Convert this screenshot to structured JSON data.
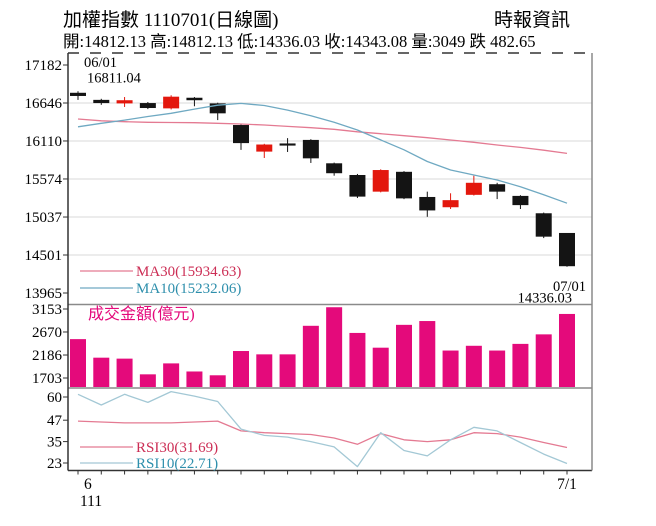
{
  "header": {
    "title": "加權指數 1110701(日線圖)",
    "source": "時報資訊",
    "info": {
      "text": "開:14812.13 高:14812.13 低:14336.03 收:14343.08 量:3049 跌 482.65",
      "open_label": "開",
      "open": "14812.13",
      "high_label": "高",
      "high": "14812.13",
      "low_label": "低",
      "low": "14336.03",
      "close_label": "收",
      "close": "14343.08",
      "volume_label": "量",
      "volume": "3049",
      "change_label": "跌",
      "change": "482.65"
    }
  },
  "colors": {
    "up_candle": "#e3170d",
    "down_candle": "#141414",
    "volume_bar": "#e40a7b",
    "ma30_line": "#e47a92",
    "ma10_line": "#6fa9c2",
    "rsi30_line": "#e47a92",
    "rsi10_line": "#a3c8d5",
    "pink_text": "#cc2e55",
    "blue_text": "#2e8fac",
    "magenta_text": "#e40a7b",
    "grid": "#d9d9d9",
    "border": "#8a8a8a",
    "axis": "#333333",
    "label_text": "#000000"
  },
  "chart_data": {
    "type": "candlestick+bar+line",
    "description": "Daily candlestick chart of Taiwan weighted index (TAIEX) for June 2022 (ROC year 111), with MA10/MA30 overlays, volume bars and RSI10/RSI30 panel",
    "price": {
      "yticks": [
        17182,
        16646,
        16110,
        15574,
        15037,
        14501,
        13965
      ],
      "ylim": [
        13965,
        17182
      ],
      "candles_ohlc": [
        [
          16790,
          16811,
          16690,
          16745
        ],
        [
          16690,
          16705,
          16620,
          16645
        ],
        [
          16640,
          16730,
          16590,
          16685
        ],
        [
          16645,
          16660,
          16560,
          16575
        ],
        [
          16570,
          16755,
          16555,
          16735
        ],
        [
          16720,
          16730,
          16600,
          16685
        ],
        [
          16640,
          16650,
          16405,
          16500
        ],
        [
          16335,
          16350,
          15985,
          16080
        ],
        [
          15960,
          16070,
          15870,
          16060
        ],
        [
          16075,
          16150,
          15955,
          16045
        ],
        [
          16125,
          16135,
          15800,
          15865
        ],
        [
          15795,
          15805,
          15620,
          15655
        ],
        [
          15630,
          15645,
          15305,
          15325
        ],
        [
          15395,
          15710,
          15385,
          15700
        ],
        [
          15675,
          15685,
          15290,
          15300
        ],
        [
          15320,
          15395,
          15040,
          15130
        ],
        [
          15175,
          15372,
          15150,
          15275
        ],
        [
          15350,
          15620,
          15340,
          15520
        ],
        [
          15500,
          15520,
          15290,
          15395
        ],
        [
          15335,
          15345,
          15150,
          15205
        ],
        [
          15090,
          15100,
          14740,
          14760
        ],
        [
          14812.13,
          14812.13,
          14336.03,
          14343.08
        ]
      ],
      "ma30": {
        "label": "MA30(15934.63)",
        "value": 15934.63,
        "values": [
          16420,
          16395,
          16382,
          16373,
          16370,
          16368,
          16360,
          16350,
          16335,
          16316,
          16297,
          16275,
          16240,
          16212,
          16184,
          16156,
          16124,
          16091,
          16053,
          16020,
          15980,
          15934.63
        ]
      },
      "ma10": {
        "label": "MA10(15232.06)",
        "value": 15232.06,
        "values": [
          16310,
          16360,
          16405,
          16455,
          16500,
          16560,
          16615,
          16640,
          16610,
          16545,
          16465,
          16375,
          16265,
          16125,
          15985,
          15820,
          15700,
          15630,
          15560,
          15465,
          15350,
          15232.06
        ]
      },
      "annotations": {
        "start_date": "06/01",
        "start_value": "16811.04",
        "end_date": "07/01",
        "end_value": "14336.03"
      }
    },
    "volume": {
      "title": "成交金額(億元)",
      "yticks": [
        3153,
        2670,
        2186,
        1703
      ],
      "values": [
        2520,
        2130,
        2110,
        1780,
        2010,
        1840,
        1760,
        2270,
        2200,
        2200,
        2800,
        3190,
        2650,
        2340,
        2820,
        2900,
        2280,
        2380,
        2280,
        2420,
        2620,
        3049
      ]
    },
    "rsi": {
      "yticks": [
        60,
        47,
        35,
        23
      ],
      "rsi30": {
        "label": "RSI30(31.69)",
        "value": 31.69,
        "values": [
          46.5,
          46,
          45.5,
          45.5,
          45.5,
          46,
          46.5,
          41,
          40,
          39.5,
          39,
          37,
          33.5,
          39.5,
          36,
          35,
          36,
          40,
          39.5,
          37.5,
          34.5,
          31.69
        ]
      },
      "rsi10": {
        "label": "RSI10(22.71)",
        "value": 22.71,
        "values": [
          61.5,
          55.5,
          61.5,
          57,
          63,
          60.5,
          57.5,
          42,
          38.5,
          37.5,
          35,
          32,
          21,
          40,
          30,
          27,
          36,
          43,
          41,
          34.5,
          28,
          22.71
        ]
      }
    },
    "xaxis": {
      "month_label": "6",
      "year_label": "111",
      "right_label": "7/1"
    },
    "legend_position": "inside-bottom-left",
    "grid": "horizontal-only-price-panel"
  }
}
